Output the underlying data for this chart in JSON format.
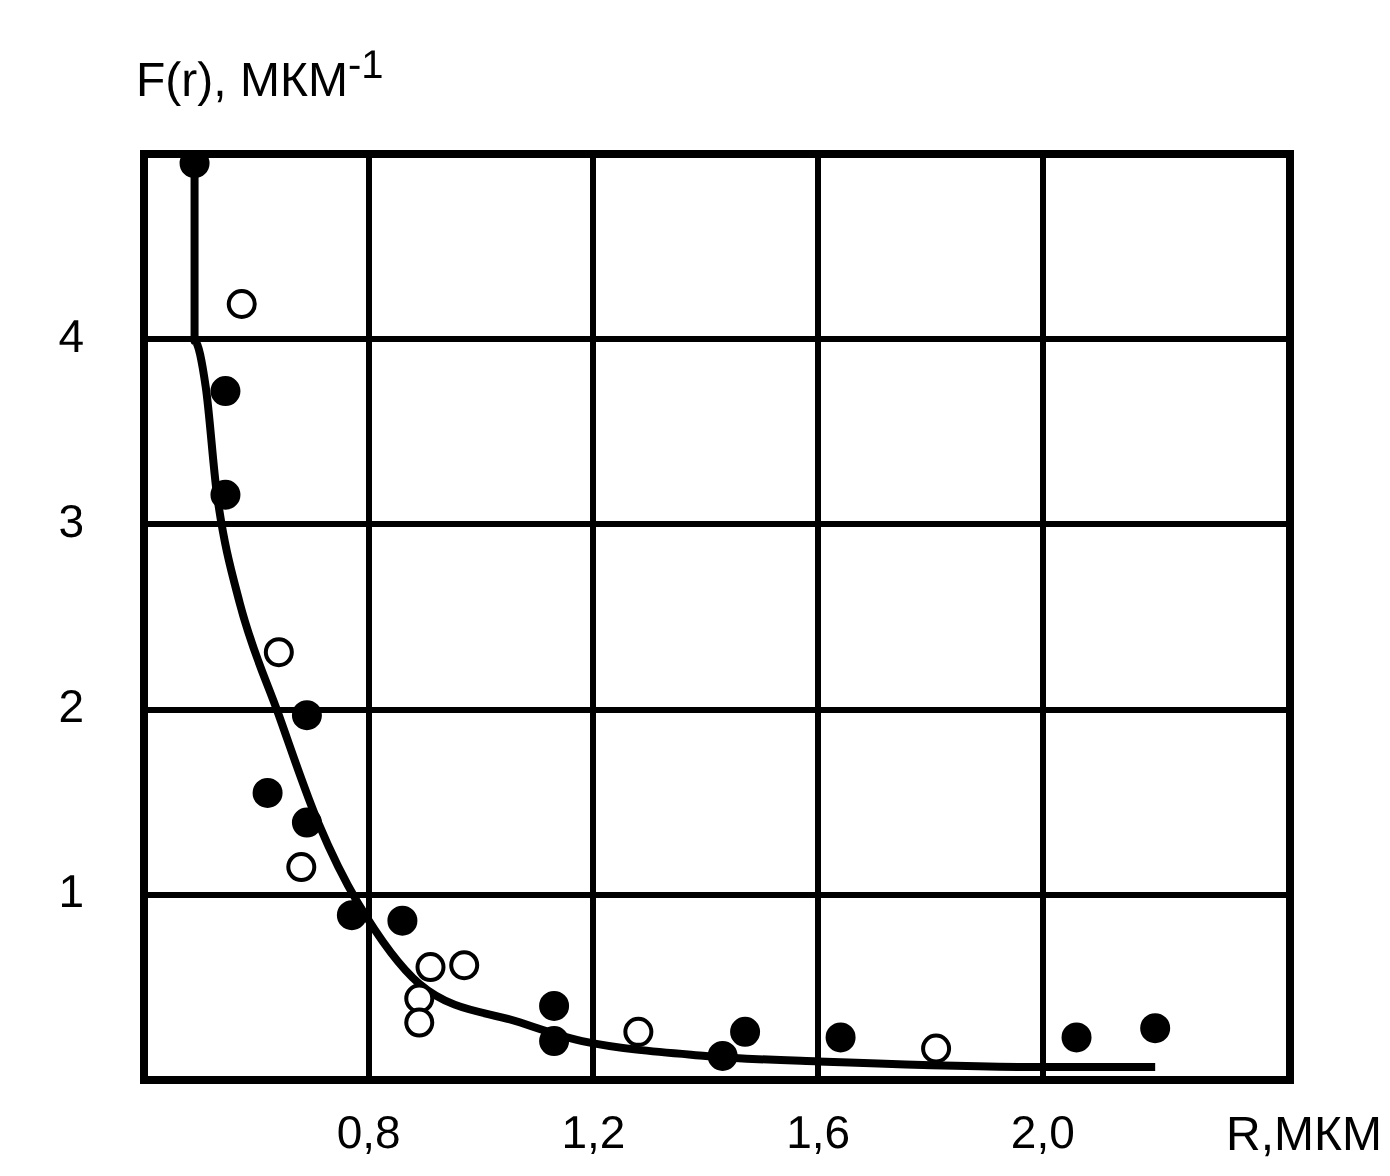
{
  "chart_data": {
    "type": "scatter",
    "ylabel": "F(r), МКМ$^{-1}$",
    "xlabel": "R,МКМ",
    "xlim": [
      0.4,
      2.44
    ],
    "ylim": [
      0,
      5
    ],
    "xticks": [
      {
        "value": 0.8,
        "label": "0,8"
      },
      {
        "value": 1.2,
        "label": "1,2"
      },
      {
        "value": 1.6,
        "label": "1,6"
      },
      {
        "value": 2.0,
        "label": "2,0"
      }
    ],
    "yticks": [
      1,
      2,
      3,
      4
    ],
    "grid": true,
    "legend": false,
    "marker": "circle",
    "series": [
      {
        "color": "#000000",
        "x": [
          0.49,
          0.545,
          0.545,
          0.69,
          0.62,
          0.69,
          0.77,
          0.86,
          1.13,
          1.13,
          1.47,
          1.43,
          1.64,
          2.06,
          2.2
        ],
        "values": [
          4.95,
          3.72,
          3.16,
          1.97,
          1.55,
          1.39,
          0.89,
          0.86,
          0.4,
          0.21,
          0.26,
          0.13,
          0.23,
          0.23,
          0.28
        ]
      },
      {
        "color": "#ffffff",
        "x": [
          0.574,
          0.64,
          0.68,
          0.91,
          0.97,
          0.89,
          0.89,
          1.28,
          1.81
        ],
        "values": [
          4.19,
          2.31,
          1.15,
          0.61,
          0.62,
          0.44,
          0.31,
          0.26,
          0.17
        ]
      },
      {
        "type": "line",
        "color": "#000000",
        "marker": "none",
        "x": [
          0.49,
          0.49,
          0.51,
          0.53,
          0.57,
          0.64,
          0.71,
          0.78,
          0.89,
          1.07,
          1.18,
          1.4,
          1.6,
          2.0,
          2.2
        ],
        "values": [
          4.9,
          3.99,
          3.74,
          3.16,
          2.58,
          1.97,
          1.39,
          0.96,
          0.52,
          0.31,
          0.21,
          0.13,
          0.1,
          0.07,
          0.07
        ]
      }
    ]
  }
}
